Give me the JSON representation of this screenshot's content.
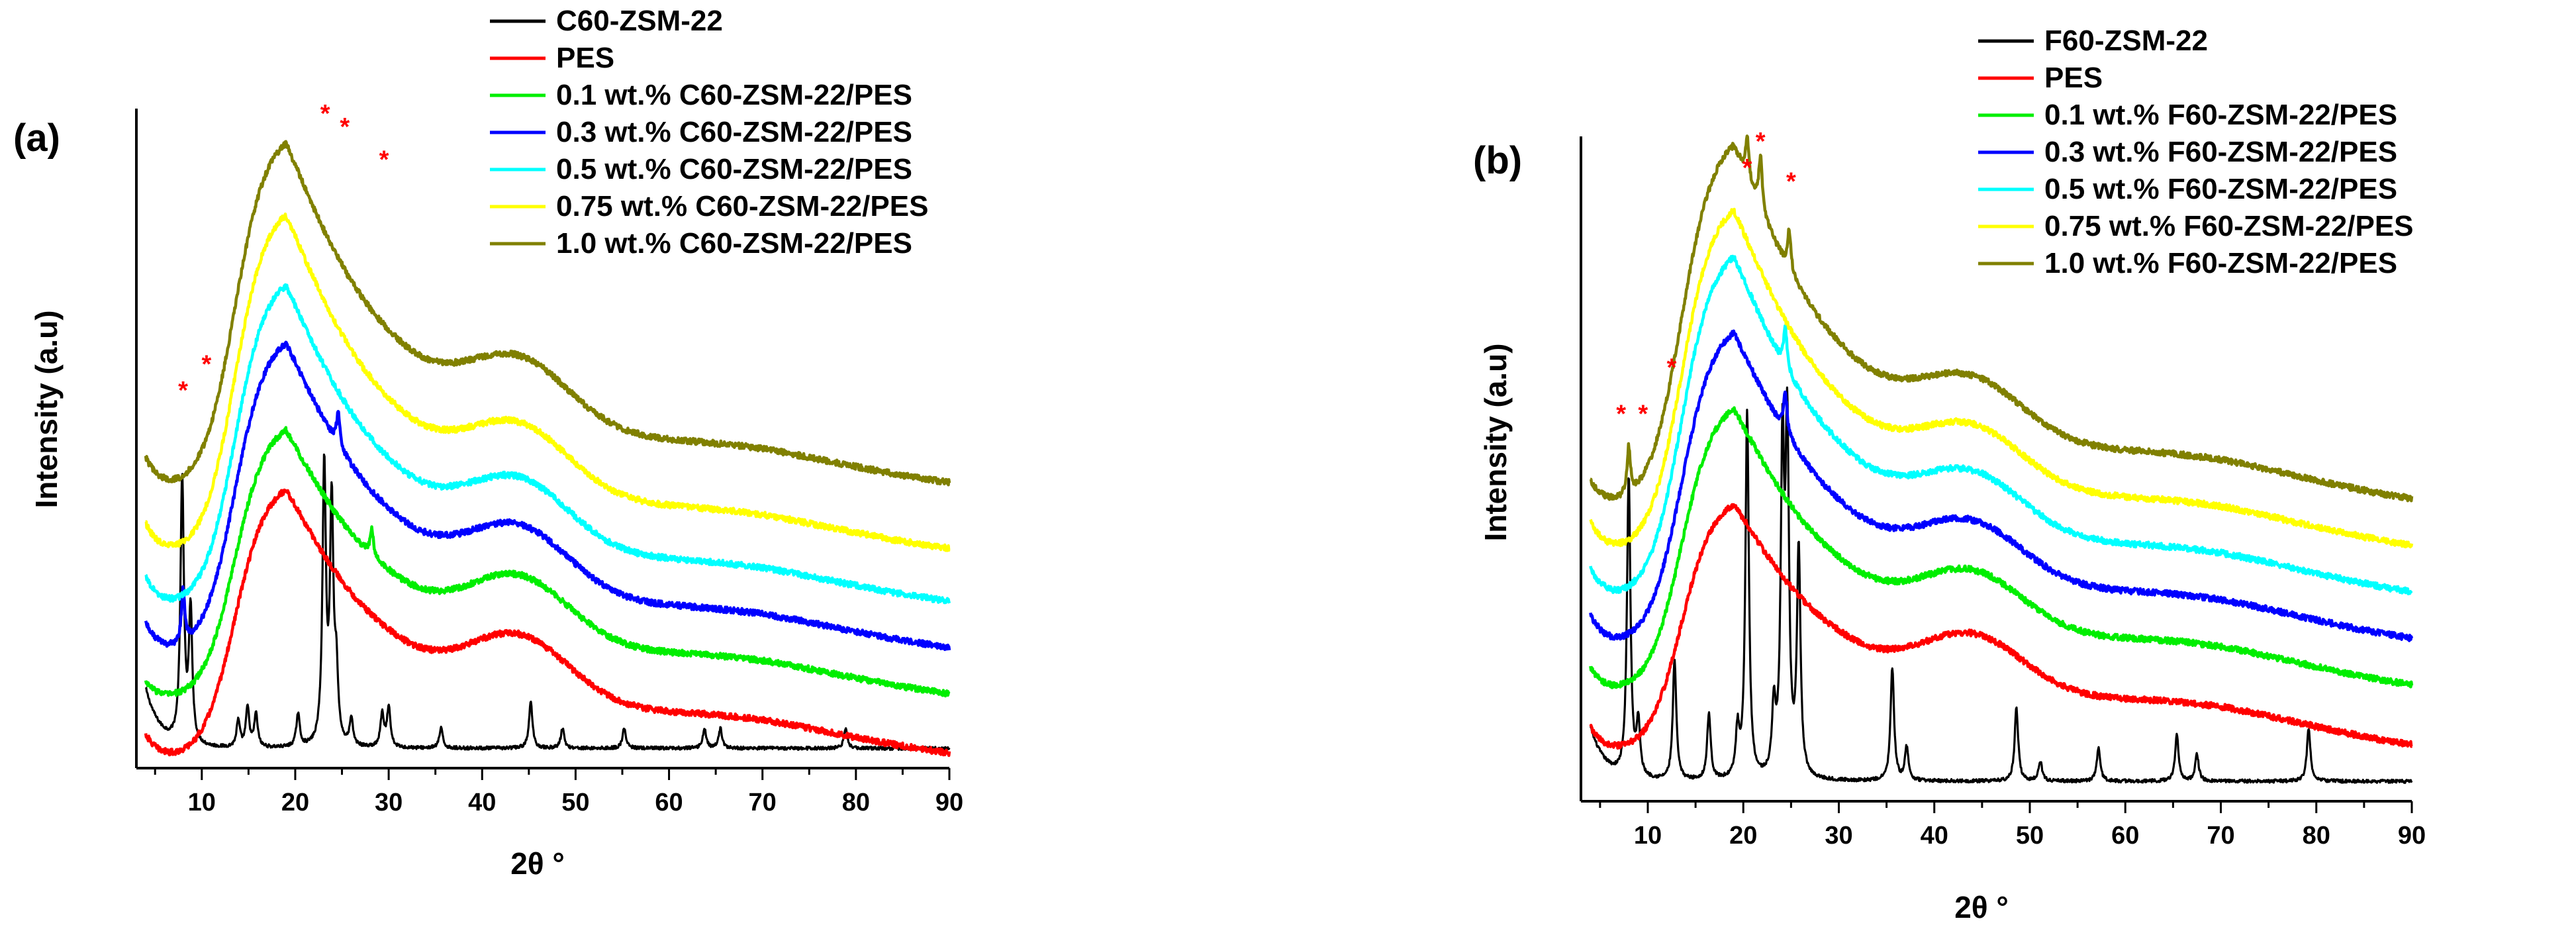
{
  "chart_data": [
    {
      "id": "a",
      "type": "line",
      "panel_label": "(a)",
      "xlabel": "2θ °",
      "ylabel": "Intensity (a.u)",
      "xlim": [
        3,
        90
      ],
      "ylim": [
        0,
        100
      ],
      "xticks": [
        10,
        20,
        30,
        40,
        50,
        60,
        70,
        80,
        90
      ],
      "legend_position": "top-right",
      "series": [
        {
          "name": "C60-ZSM-22",
          "color": "#000000",
          "profile": "sample",
          "base": 3,
          "start": 12,
          "peaks": [
            [
              7.9,
              40
            ],
            [
              8.8,
              20
            ],
            [
              13.9,
              4
            ],
            [
              14.9,
              6
            ],
            [
              15.8,
              5
            ],
            [
              20.3,
              5
            ],
            [
              23.1,
              42
            ],
            [
              23.9,
              36
            ],
            [
              24.4,
              10
            ],
            [
              26.0,
              4
            ],
            [
              29.3,
              5
            ],
            [
              30.0,
              6
            ],
            [
              35.6,
              3
            ],
            [
              45.2,
              7
            ],
            [
              48.6,
              3
            ],
            [
              55.2,
              3
            ],
            [
              63.8,
              3
            ],
            [
              65.5,
              3
            ],
            [
              78.9,
              3
            ]
          ]
        },
        {
          "name": "PES",
          "color": "#ff0000",
          "profile": "pes",
          "offset": 0,
          "peakH": 40,
          "haloH": 10,
          "bumpH": 4,
          "startH": 5,
          "minH": 1,
          "peaks": []
        },
        {
          "name": "0.1 wt.% C60-ZSM-22/PES",
          "color": "#00ee00",
          "profile": "pes",
          "offset": 9,
          "peakH": 40,
          "haloH": 10,
          "bumpH": 4,
          "startH": 4,
          "minH": 1,
          "peaks": [
            [
              28.2,
              4
            ]
          ]
        },
        {
          "name": "0.3 wt.% C60-ZSM-22/PES",
          "color": "#0000ff",
          "profile": "pes",
          "offset": 16,
          "peakH": 47,
          "haloH": 10,
          "bumpH": 4,
          "startH": 6,
          "minH": 1,
          "peaks": [
            [
              8.0,
              8
            ],
            [
              24.6,
              5
            ]
          ]
        },
        {
          "name": "0.5 wt.% C60-ZSM-22/PES",
          "color": "#00ffff",
          "profile": "pes",
          "offset": 23,
          "peakH": 49,
          "haloH": 10,
          "bumpH": 4,
          "startH": 6,
          "minH": 1,
          "peaks": []
        },
        {
          "name": "0.75 wt.% C60-ZSM-22/PES",
          "color": "#ffff00",
          "profile": "pes",
          "offset": 31,
          "peakH": 52,
          "haloH": 10,
          "bumpH": 4,
          "startH": 6,
          "minH": 1,
          "peaks": []
        },
        {
          "name": "1.0 wt.% C60-ZSM-22/PES",
          "color": "#808000",
          "profile": "pes",
          "offset": 41,
          "peakH": 53,
          "haloH": 10,
          "bumpH": 4,
          "startH": 6,
          "minH": 1,
          "peaks": []
        }
      ],
      "annotations": [
        {
          "text": "*",
          "x": 8.0,
          "y": 56
        },
        {
          "text": "*",
          "x": 10.5,
          "y": 60
        },
        {
          "text": "*",
          "x": 23.2,
          "y": 98
        },
        {
          "text": "*",
          "x": 25.3,
          "y": 96
        },
        {
          "text": "*",
          "x": 29.5,
          "y": 91
        }
      ]
    },
    {
      "id": "b",
      "type": "line",
      "panel_label": "(b)",
      "xlabel": "2θ °",
      "ylabel": "Intensity (a.u)",
      "xlim": [
        3,
        90
      ],
      "ylim": [
        0,
        100
      ],
      "xticks": [
        10,
        20,
        30,
        40,
        50,
        60,
        70,
        80,
        90
      ],
      "legend_position": "top-right",
      "series": [
        {
          "name": "F60-ZSM-22",
          "color": "#000000",
          "profile": "sample",
          "base": 3,
          "start": 11,
          "peaks": [
            [
              8.0,
              45
            ],
            [
              9.0,
              8
            ],
            [
              12.8,
              18
            ],
            [
              16.4,
              10
            ],
            [
              19.4,
              7
            ],
            [
              20.4,
              55
            ],
            [
              23.2,
              10
            ],
            [
              24.1,
              47
            ],
            [
              24.6,
              50
            ],
            [
              25.8,
              34
            ],
            [
              35.6,
              17
            ],
            [
              37.1,
              5
            ],
            [
              48.6,
              11
            ],
            [
              51.1,
              3
            ],
            [
              57.2,
              5
            ],
            [
              65.4,
              7
            ],
            [
              67.5,
              4
            ],
            [
              79.2,
              8
            ]
          ]
        },
        {
          "name": "PES",
          "color": "#ff0000",
          "profile": "pes",
          "offset": 0,
          "peakH": 36,
          "haloH": 9,
          "bumpH": 5,
          "startH": 11,
          "minH": 7,
          "peaks": []
        },
        {
          "name": "0.1 wt.% F60-ZSM-22/PES",
          "color": "#00ee00",
          "profile": "pes",
          "offset": 8,
          "peakH": 42,
          "haloH": 9,
          "bumpH": 5,
          "startH": 12,
          "minH": 8,
          "peaks": []
        },
        {
          "name": "0.3 wt.% F60-ZSM-22/PES",
          "color": "#0000ff",
          "profile": "pes",
          "offset": 15,
          "peakH": 47,
          "haloH": 9,
          "bumpH": 5,
          "startH": 13,
          "minH": 8,
          "peaks": [
            [
              24.4,
              6
            ]
          ]
        },
        {
          "name": "0.5 wt.% F60-ZSM-22/PES",
          "color": "#00ffff",
          "profile": "pes",
          "offset": 22,
          "peakH": 52,
          "haloH": 9,
          "bumpH": 5,
          "startH": 13,
          "minH": 8,
          "peaks": [
            [
              24.4,
              6
            ]
          ]
        },
        {
          "name": "0.75 wt.% F60-ZSM-22/PES",
          "color": "#ffff00",
          "profile": "pes",
          "offset": 29,
          "peakH": 52,
          "haloH": 9,
          "bumpH": 5,
          "startH": 13,
          "minH": 8,
          "peaks": []
        },
        {
          "name": "1.0 wt.% F60-ZSM-22/PES",
          "color": "#808000",
          "profile": "pes",
          "offset": 36,
          "peakH": 55,
          "haloH": 9,
          "bumpH": 5,
          "startH": 12,
          "minH": 8,
          "peaks": [
            [
              8.0,
              7
            ],
            [
              20.4,
              6
            ],
            [
              21.8,
              8
            ],
            [
              24.8,
              6
            ]
          ]
        }
      ],
      "annotations": [
        {
          "text": "*",
          "x": 7.2,
          "y": 57
        },
        {
          "text": "*",
          "x": 9.5,
          "y": 57
        },
        {
          "text": "*",
          "x": 12.5,
          "y": 64
        },
        {
          "text": "*",
          "x": 20.4,
          "y": 94
        },
        {
          "text": "*",
          "x": 21.8,
          "y": 98
        },
        {
          "text": "*",
          "x": 25.0,
          "y": 92
        }
      ]
    }
  ]
}
